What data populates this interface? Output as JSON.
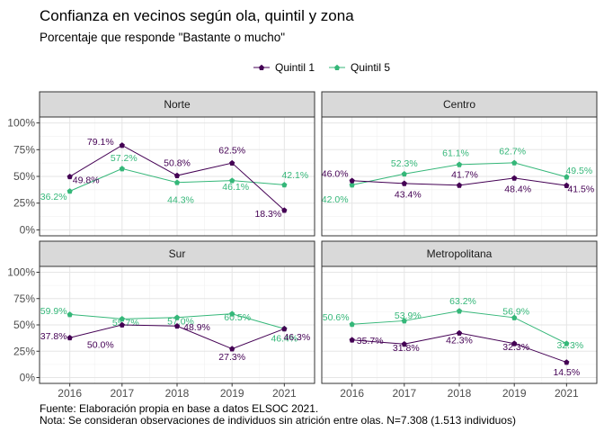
{
  "chart_data": {
    "type": "line",
    "title": "Confianza en vecinos según ola, quintil y zona",
    "subtitle": "Porcentaje que responde \"Bastante o mucho\"",
    "x": [
      "2016",
      "2017",
      "2018",
      "2019",
      "2021"
    ],
    "y_ticks": [
      "0%",
      "25%",
      "50%",
      "75%",
      "100%"
    ],
    "ylim": [
      0,
      100
    ],
    "legend_position": "top",
    "grid": true,
    "series_meta": [
      {
        "name": "Quintil 1",
        "color": "#440154"
      },
      {
        "name": "Quintil 5",
        "color": "#35b779"
      }
    ],
    "panels": [
      {
        "name": "Norte",
        "series": [
          {
            "name": "Quintil 1",
            "values": [
              49.8,
              79.1,
              50.8,
              62.5,
              18.3
            ],
            "labels": [
              "49.8%",
              "79.1%",
              "50.8%",
              "62.5%",
              "18.3%"
            ]
          },
          {
            "name": "Quintil 5",
            "values": [
              36.2,
              57.2,
              44.3,
              46.1,
              42.1
            ],
            "labels": [
              "36.2%",
              "57.2%",
              "44.3%",
              "46.1%",
              "42.1%"
            ]
          }
        ]
      },
      {
        "name": "Centro",
        "series": [
          {
            "name": "Quintil 1",
            "values": [
              46.0,
              43.4,
              41.7,
              48.4,
              41.5
            ],
            "labels": [
              "46.0%",
              "43.4%",
              "41.7%",
              "48.4%",
              "41.5%"
            ]
          },
          {
            "name": "Quintil 5",
            "values": [
              42.0,
              52.3,
              61.1,
              62.7,
              49.5
            ],
            "labels": [
              "42.0%",
              "52.3%",
              "61.1%",
              "62.7%",
              "49.5%"
            ]
          }
        ]
      },
      {
        "name": "Sur",
        "series": [
          {
            "name": "Quintil 1",
            "values": [
              37.8,
              50.0,
              48.9,
              27.3,
              46.3
            ],
            "labels": [
              "37.8%",
              "50.0%",
              "48.9%",
              "27.3%",
              "46.3%"
            ]
          },
          {
            "name": "Quintil 5",
            "values": [
              59.9,
              55.7,
              57.0,
              60.5,
              46.4
            ],
            "labels": [
              "59.9%",
              "55.7%",
              "57.0%",
              "60.5%",
              "46.4%"
            ]
          }
        ]
      },
      {
        "name": "Metropolitana",
        "series": [
          {
            "name": "Quintil 1",
            "values": [
              35.7,
              31.8,
              42.3,
              32.3,
              14.5
            ],
            "labels": [
              "35.7%",
              "31.8%",
              "42.3%",
              "32.3%",
              "14.5%"
            ]
          },
          {
            "name": "Quintil 5",
            "values": [
              50.6,
              53.9,
              63.2,
              56.9,
              32.3
            ],
            "labels": [
              "50.6%",
              "53.9%",
              "63.2%",
              "56.9%",
              "32.3%"
            ]
          }
        ]
      }
    ],
    "caption_lines": [
      "Fuente: Elaboración propia en base a datos ELSOC 2021.",
      "Nota: Se consideran observaciones de individuos sin atrición entre olas. N=7.308 (1.513 individuos)"
    ]
  }
}
